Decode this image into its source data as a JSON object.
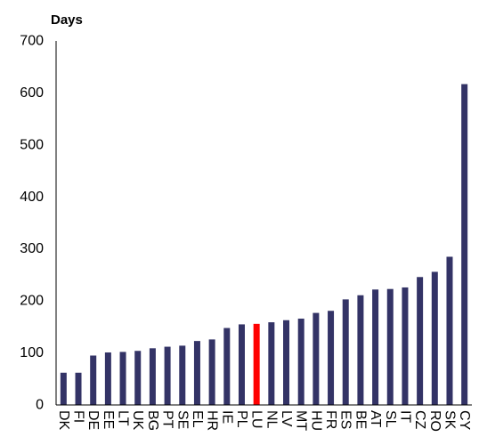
{
  "chart_data": {
    "type": "bar",
    "title": "",
    "xlabel": "",
    "ylabel": "Days",
    "ylim": [
      0,
      700
    ],
    "yticks": [
      0,
      100,
      200,
      300,
      400,
      500,
      600,
      700
    ],
    "grid": false,
    "categories": [
      "DK",
      "FI",
      "DE",
      "EE",
      "LT",
      "UK",
      "BG",
      "PT",
      "SE",
      "EL",
      "HR",
      "IE",
      "PL",
      "LU",
      "NL",
      "LV",
      "MT",
      "HU",
      "FR",
      "ES",
      "BE",
      "AT",
      "SL",
      "IT",
      "CZ",
      "RO",
      "SK",
      "CY"
    ],
    "values": [
      62,
      62,
      95,
      101,
      102,
      104,
      109,
      112,
      114,
      123,
      126,
      148,
      155,
      156,
      159,
      163,
      166,
      177,
      181,
      203,
      211,
      222,
      223,
      226,
      246,
      256,
      285,
      617
    ],
    "bar_color": "#333366",
    "highlight_category": "LU",
    "highlight_color": "#ff0000",
    "axis_color": "#000000"
  }
}
